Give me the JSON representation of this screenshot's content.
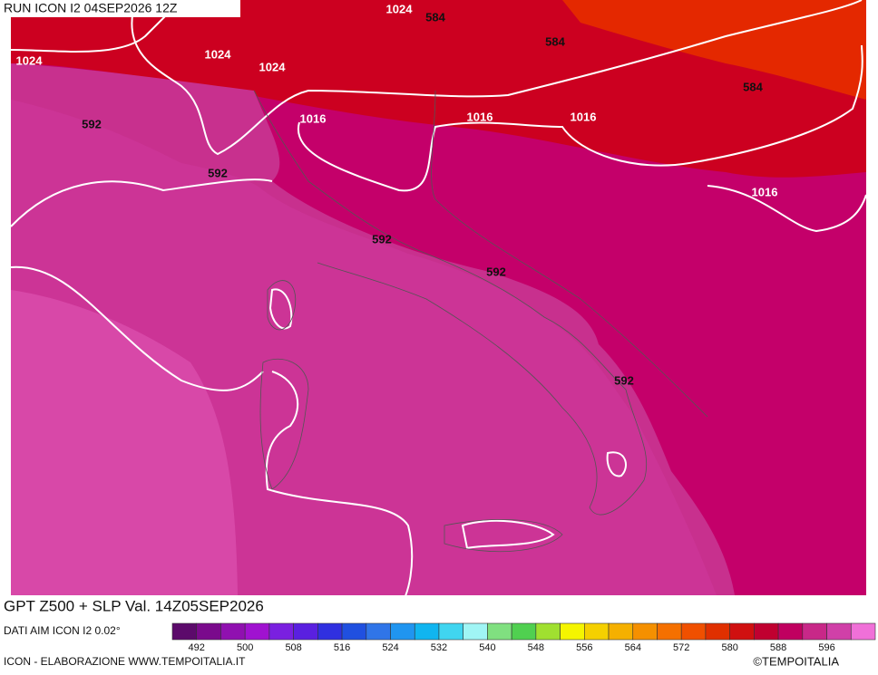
{
  "header": {
    "run": "RUN ICON I2 04SEP2026 12Z"
  },
  "map": {
    "contour_labels": [
      1024,
      584,
      1024,
      584,
      1024,
      1024,
      584,
      592,
      592,
      1016,
      1016,
      1016,
      592,
      1016,
      592,
      592
    ]
  },
  "footer": {
    "title": "GPT Z500 + SLP Val. 14Z05SEP2026",
    "source": "DATI AIM ICON I2 0.02°",
    "credit": "ICON - ELABORAZIONE WWW.TEMPOITALIA.IT",
    "copyright": "©TEMPOITALIA"
  },
  "colorbar": {
    "colors": [
      "#5c0a6b",
      "#7a0a8c",
      "#9010b0",
      "#a012d0",
      "#7a20e0",
      "#5a20e0",
      "#3030e0",
      "#2050e0",
      "#3075e8",
      "#2095f0",
      "#10b5f0",
      "#40d5f0",
      "#a0f5f5",
      "#80e080",
      "#50d050",
      "#a0e030",
      "#f5f500",
      "#f5d000",
      "#f5b000",
      "#f59000",
      "#f57000",
      "#f05000",
      "#e03000",
      "#d01010",
      "#c00030",
      "#c00060",
      "#c82888",
      "#d040a8",
      "#f070d8"
    ],
    "labels": [
      492,
      500,
      508,
      516,
      524,
      532,
      540,
      548,
      556,
      564,
      572,
      580,
      588,
      596
    ]
  }
}
